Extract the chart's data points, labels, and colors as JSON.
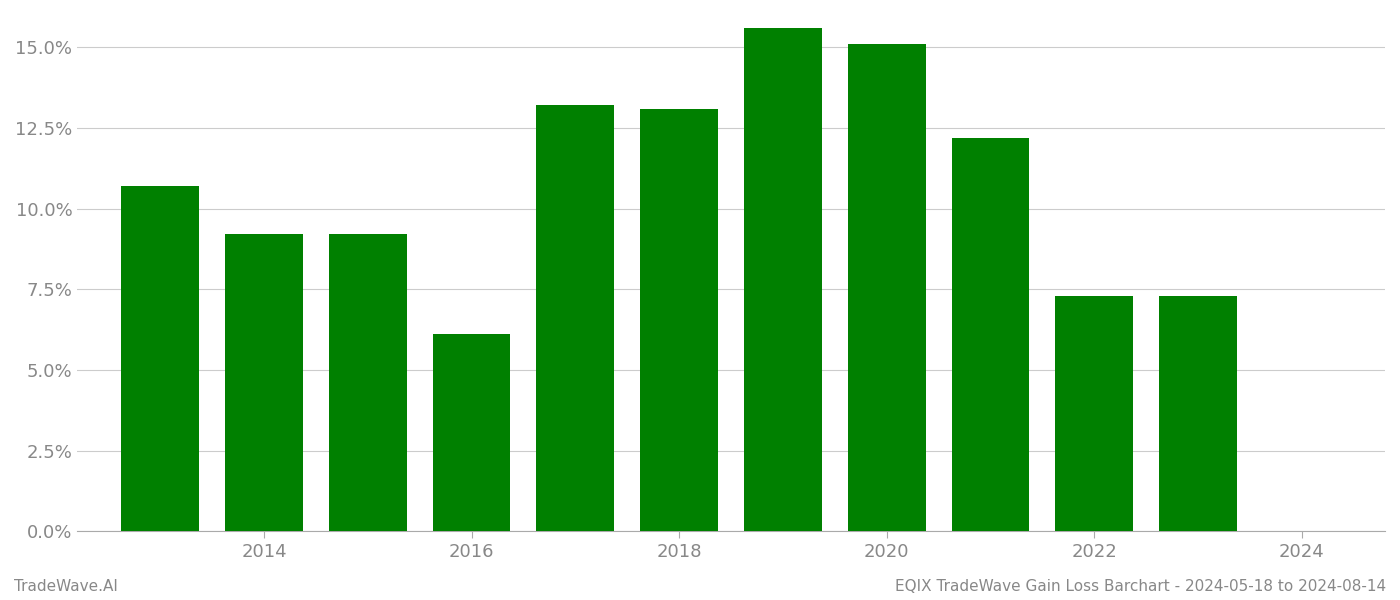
{
  "years": [
    2013,
    2014,
    2015,
    2016,
    2017,
    2018,
    2019,
    2020,
    2021,
    2022,
    2023
  ],
  "values": [
    0.107,
    0.092,
    0.092,
    0.061,
    0.132,
    0.131,
    0.156,
    0.151,
    0.122,
    0.073,
    0.073
  ],
  "bar_color": "#008000",
  "background_color": "#ffffff",
  "footer_left": "TradeWave.AI",
  "footer_right": "EQIX TradeWave Gain Loss Barchart - 2024-05-18 to 2024-08-14",
  "ylim": [
    0,
    0.16
  ],
  "ytick_values": [
    0.0,
    0.025,
    0.05,
    0.075,
    0.1,
    0.125,
    0.15
  ],
  "xtick_positions": [
    2014,
    2016,
    2018,
    2020,
    2022,
    2024
  ],
  "xlim_left": 2012.2,
  "xlim_right": 2024.8,
  "grid_color": "#cccccc",
  "footer_fontsize": 11,
  "tick_label_color": "#888888",
  "bar_width": 0.75
}
